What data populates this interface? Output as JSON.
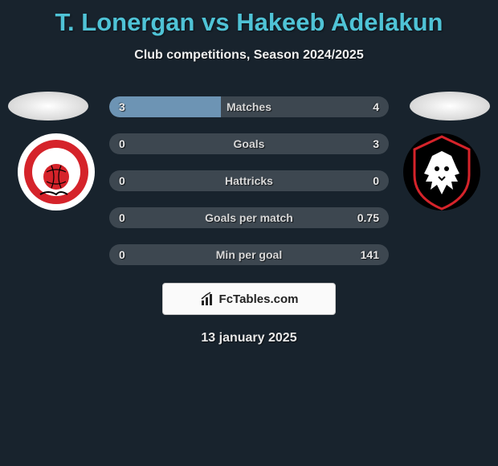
{
  "title": "T. Lonergan vs Hakeeb Adelakun",
  "subtitle": "Club competitions, Season 2024/2025",
  "date": "13 january 2025",
  "footer_label": "FcTables.com",
  "colors": {
    "background": "#18232d",
    "title": "#4fc3d6",
    "bar_fill": "#6d94b4",
    "bar_track": "#3d4750",
    "text": "#e8e8e8"
  },
  "rows": [
    {
      "label": "Matches",
      "left_val": "3",
      "right_val": "4",
      "left_pct": 40,
      "right_pct": 0
    },
    {
      "label": "Goals",
      "left_val": "0",
      "right_val": "3",
      "left_pct": 0,
      "right_pct": 0
    },
    {
      "label": "Hattricks",
      "left_val": "0",
      "right_val": "0",
      "left_pct": 0,
      "right_pct": 0
    },
    {
      "label": "Goals per match",
      "left_val": "0",
      "right_val": "0.75",
      "left_pct": 0,
      "right_pct": 0
    },
    {
      "label": "Min per goal",
      "left_val": "0",
      "right_val": "141",
      "left_pct": 0,
      "right_pct": 0
    }
  ],
  "team_left": {
    "name": "Fleetwood Town",
    "crest": {
      "outer": "#ffffff",
      "ring": "#d5232a",
      "text": "#ffffff",
      "ball": "#d5232a"
    }
  },
  "team_right": {
    "name": "Salford City",
    "crest": {
      "outer": "#000000",
      "ring": "#d5232a",
      "lion": "#ffffff"
    }
  }
}
